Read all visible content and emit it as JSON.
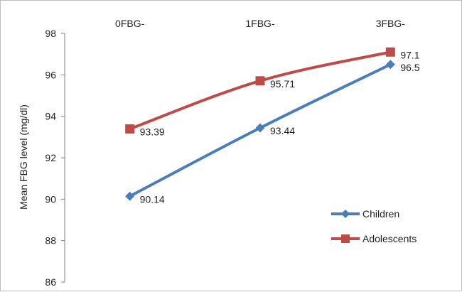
{
  "chart_data": {
    "type": "line",
    "categories": [
      "0FBG-",
      "1FBG-",
      "3FBG-"
    ],
    "series": [
      {
        "name": "Children",
        "values": [
          90.14,
          93.44,
          96.5
        ],
        "color": "#4a7ebb",
        "marker": "diamond",
        "labels": [
          "90.14",
          "93.44",
          "96.5"
        ]
      },
      {
        "name": "Adolescents",
        "values": [
          93.39,
          95.71,
          97.1
        ],
        "color": "#be4b48",
        "marker": "square",
        "labels": [
          "93.39",
          "95.71",
          "97.1"
        ]
      }
    ],
    "ylabel": "Mean FBG level (mg/dl)",
    "xlabel": "",
    "ylim": [
      86,
      98
    ],
    "yticks": [
      "86",
      "88",
      "90",
      "92",
      "94",
      "96",
      "98"
    ],
    "category_axis_position": "top",
    "grid": false,
    "legend_position": "bottom-right"
  }
}
